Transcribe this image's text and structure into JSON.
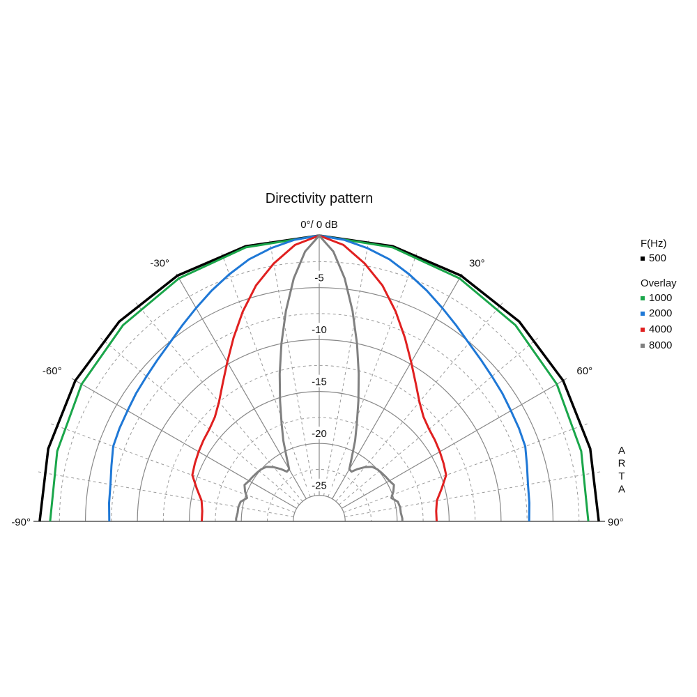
{
  "chart_data": {
    "type": "polar-line",
    "title": "Directivity pattern",
    "center_label": "0°/ 0 dB",
    "angle_range": [
      -90,
      90
    ],
    "angle_ticks": [
      {
        "angle": -90,
        "label": "-90°"
      },
      {
        "angle": -60,
        "label": "-60°"
      },
      {
        "angle": -30,
        "label": "-30°"
      },
      {
        "angle": 30,
        "label": "30°"
      },
      {
        "angle": 60,
        "label": "60°"
      },
      {
        "angle": 90,
        "label": "90°"
      }
    ],
    "radial_range_db": [
      -27.5,
      0
    ],
    "radial_ticks": [
      {
        "value": -5,
        "label": "-5"
      },
      {
        "value": -10,
        "label": "-10"
      },
      {
        "value": -15,
        "label": "-15"
      },
      {
        "value": -20,
        "label": "-20"
      },
      {
        "value": -25,
        "label": "-25"
      }
    ],
    "legend": {
      "header": "F(Hz)",
      "overlay_label": "Overlay",
      "position": "right"
    },
    "watermark": "ARTA",
    "series": [
      {
        "name": "500",
        "color": "#000000",
        "overlay": false,
        "points": [
          [
            0,
            0
          ],
          [
            15,
            -0.1
          ],
          [
            30,
            -0.2
          ],
          [
            45,
            -0.3
          ],
          [
            60,
            -0.4
          ],
          [
            75,
            -0.5
          ],
          [
            90,
            -0.6
          ]
        ]
      },
      {
        "name": "1000",
        "color": "#1aa64a",
        "overlay": true,
        "points": [
          [
            0,
            0
          ],
          [
            15,
            -0.2
          ],
          [
            30,
            -0.5
          ],
          [
            45,
            -0.8
          ],
          [
            60,
            -1.1
          ],
          [
            75,
            -1.4
          ],
          [
            90,
            -1.6
          ]
        ]
      },
      {
        "name": "2000",
        "color": "#1f78d6",
        "overlay": true,
        "points": [
          [
            0,
            0
          ],
          [
            5,
            -0.3
          ],
          [
            10,
            -0.8
          ],
          [
            15,
            -1.4
          ],
          [
            20,
            -2.2
          ],
          [
            25,
            -3
          ],
          [
            30,
            -3.8
          ],
          [
            35,
            -4.5
          ],
          [
            40,
            -5.1
          ],
          [
            45,
            -5.5
          ],
          [
            50,
            -5.8
          ],
          [
            55,
            -6
          ],
          [
            60,
            -6.2
          ],
          [
            65,
            -6.3
          ],
          [
            70,
            -6.4
          ],
          [
            75,
            -6.8
          ],
          [
            80,
            -7.1
          ],
          [
            85,
            -7.2
          ],
          [
            90,
            -7.3
          ]
        ]
      },
      {
        "name": "4000",
        "color": "#e02020",
        "overlay": true,
        "points": [
          [
            0,
            0
          ],
          [
            5,
            -0.8
          ],
          [
            10,
            -2.3
          ],
          [
            15,
            -4
          ],
          [
            20,
            -6
          ],
          [
            25,
            -8
          ],
          [
            30,
            -9.8
          ],
          [
            35,
            -11.3
          ],
          [
            40,
            -12.5
          ],
          [
            45,
            -13.3
          ],
          [
            50,
            -13.7
          ],
          [
            55,
            -13.9
          ],
          [
            60,
            -14.1
          ],
          [
            65,
            -14.3
          ],
          [
            70,
            -14.5
          ],
          [
            75,
            -15.3
          ],
          [
            80,
            -16
          ],
          [
            85,
            -16.2
          ],
          [
            90,
            -16.2
          ]
        ]
      },
      {
        "name": "8000",
        "color": "#808080",
        "overlay": true,
        "points": [
          [
            0,
            0
          ],
          [
            3,
            -1.5
          ],
          [
            6,
            -4
          ],
          [
            9,
            -7
          ],
          [
            12,
            -10
          ],
          [
            15,
            -12.8
          ],
          [
            18,
            -15.3
          ],
          [
            21,
            -17.4
          ],
          [
            24,
            -19
          ],
          [
            27,
            -20.6
          ],
          [
            30,
            -21.7
          ],
          [
            33,
            -21.8
          ],
          [
            36,
            -21.3
          ],
          [
            40,
            -20.7
          ],
          [
            44,
            -20.2
          ],
          [
            48,
            -20
          ],
          [
            52,
            -19.9
          ],
          [
            56,
            -19.8
          ],
          [
            60,
            -19.7
          ],
          [
            64,
            -19.5
          ],
          [
            68,
            -19.8
          ],
          [
            72,
            -20.2
          ],
          [
            76,
            -19.7
          ],
          [
            80,
            -19.6
          ],
          [
            84,
            -19.6
          ],
          [
            88,
            -19.5
          ],
          [
            90,
            -19.5
          ]
        ]
      }
    ]
  }
}
